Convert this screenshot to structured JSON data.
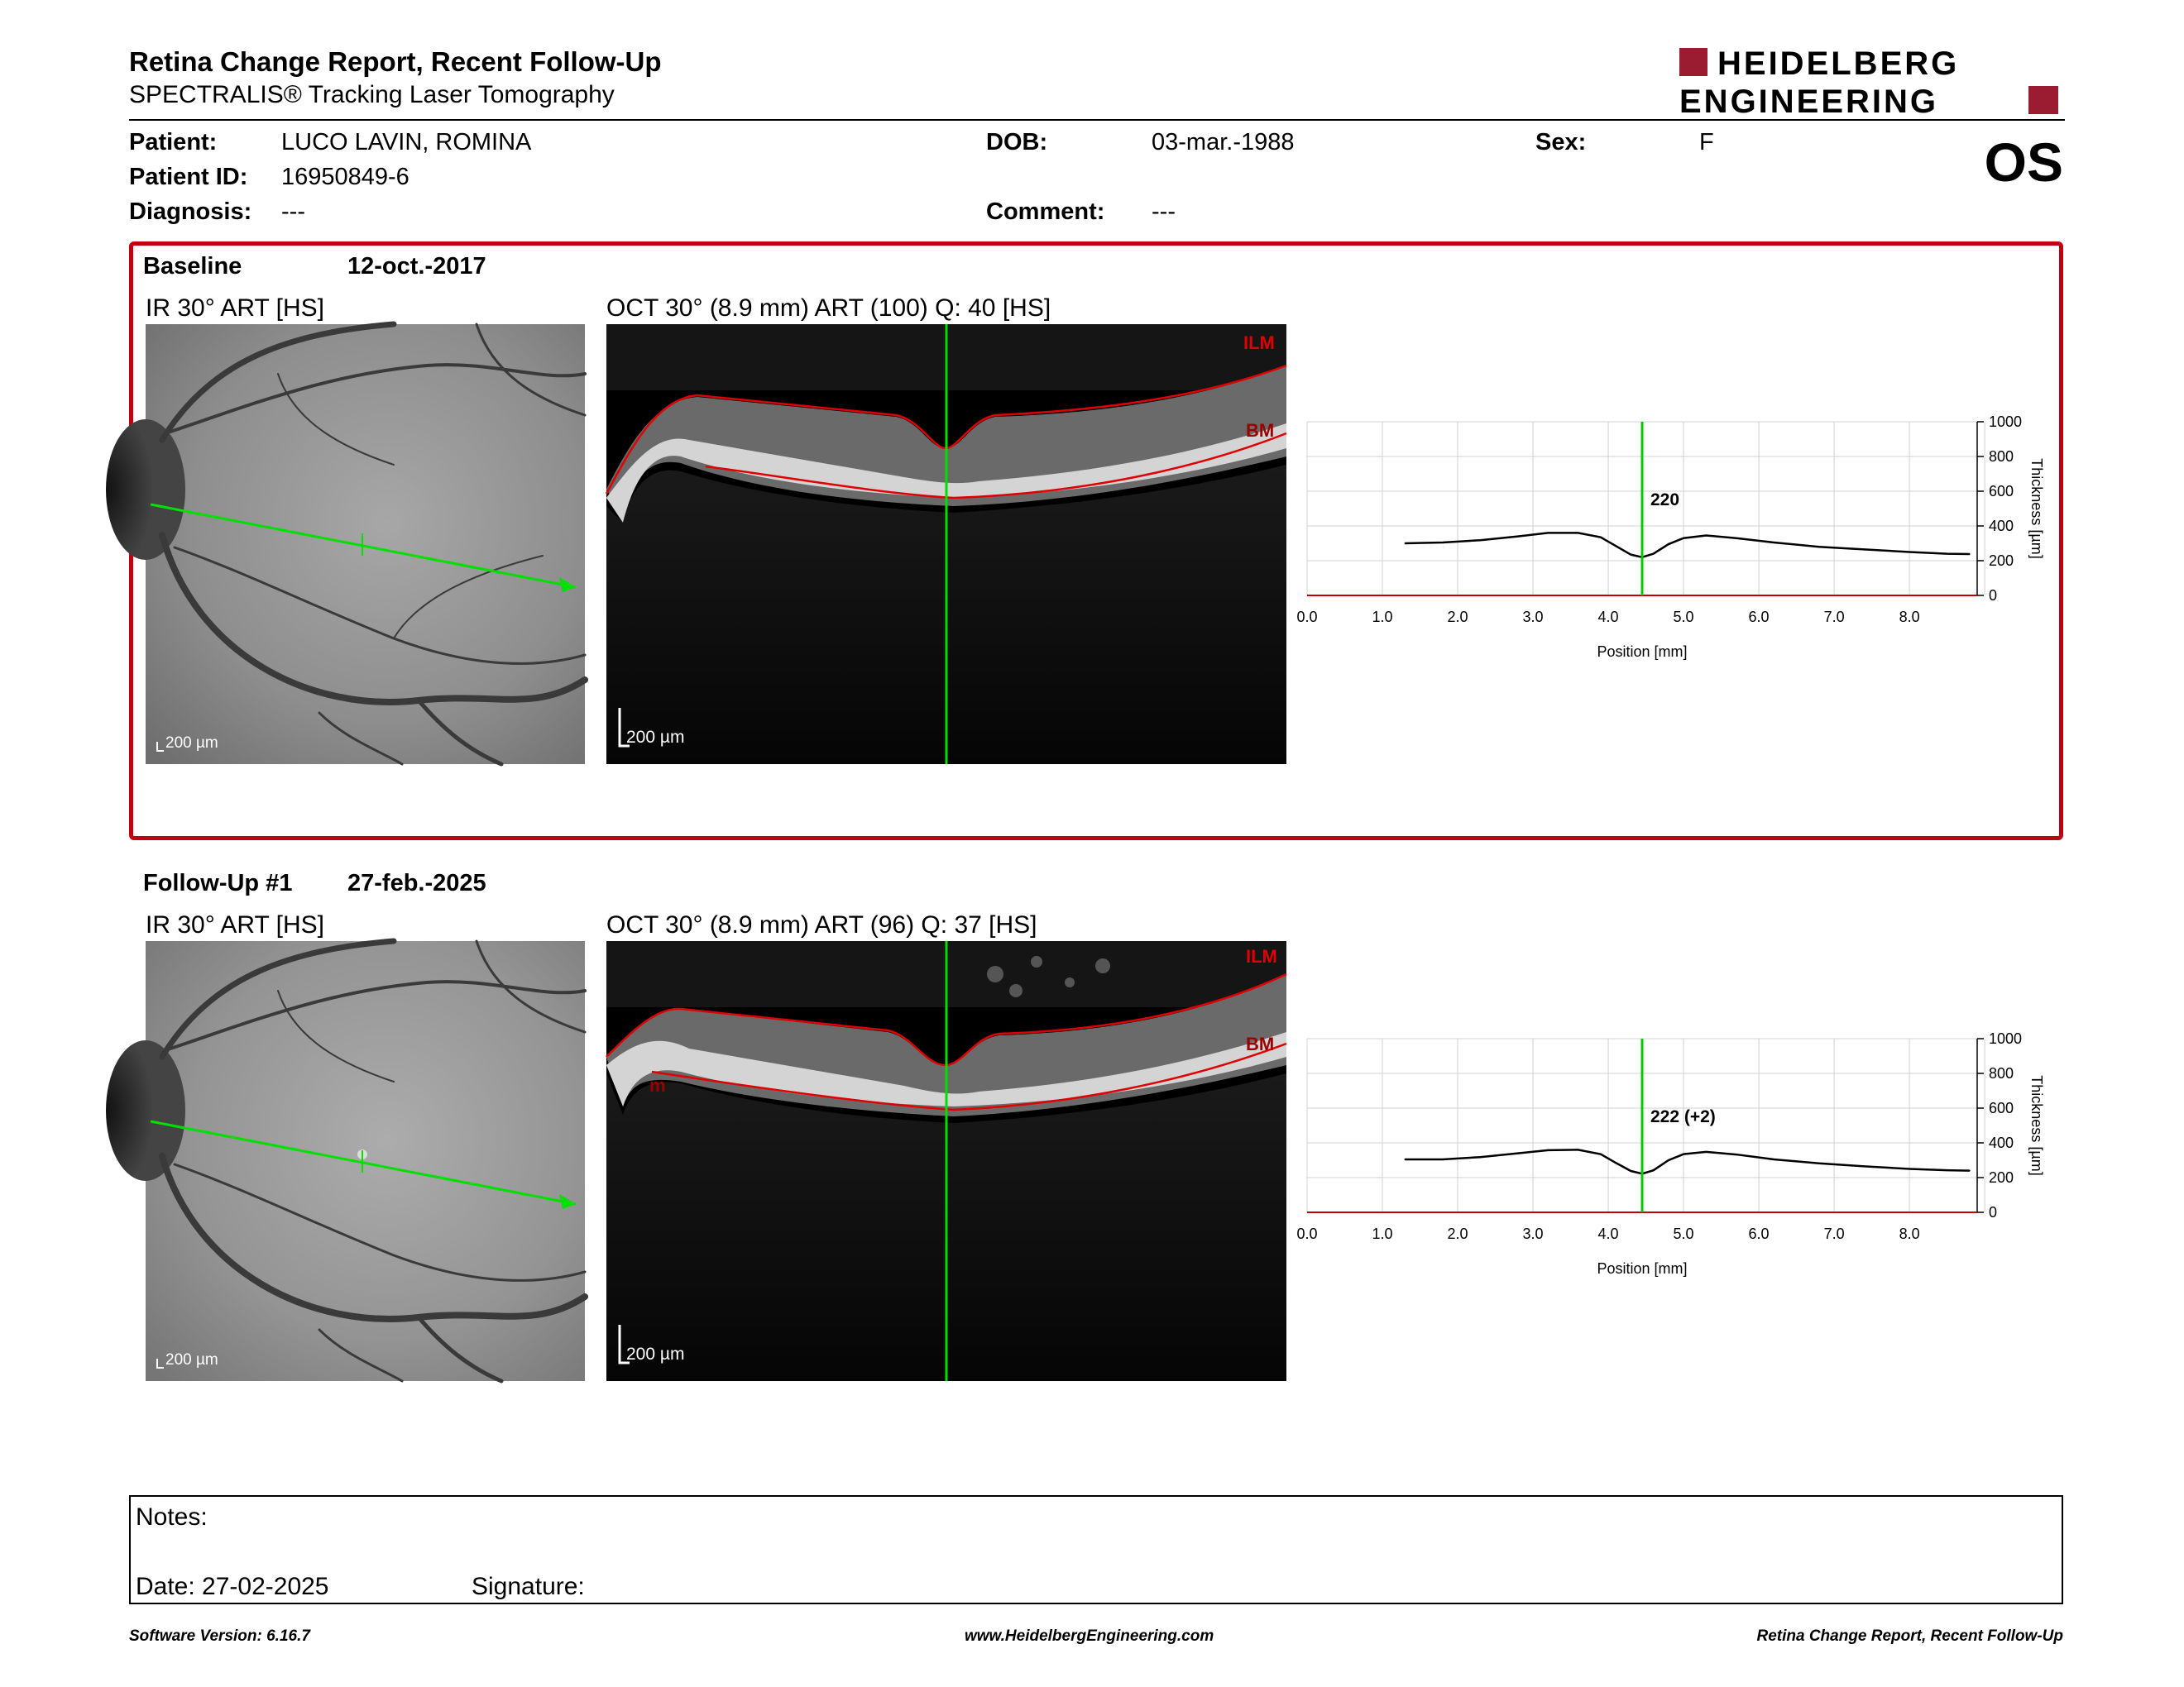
{
  "header": {
    "title": "Retina Change Report, Recent Follow-Up",
    "subtitle": "SPECTRALIS® Tracking Laser Tomography",
    "logo_line1": "HEIDELBERG",
    "logo_line2": "ENGINEERING",
    "brand_color": "#9b1b30"
  },
  "patient": {
    "patient_label": "Patient:",
    "patient_value": "LUCO LAVIN, ROMINA",
    "id_label": "Patient ID:",
    "id_value": "16950849-6",
    "diagnosis_label": "Diagnosis:",
    "diagnosis_value": "---",
    "dob_label": "DOB:",
    "dob_value": "03-mar.-1988",
    "comment_label": "Comment:",
    "comment_value": "---",
    "sex_label": "Sex:",
    "sex_value": "F",
    "eye": "OS"
  },
  "baseline": {
    "title": "Baseline",
    "date": "12-oct.-2017",
    "ir_caption": "IR 30° ART [HS]",
    "oct_caption": "OCT 30° (8.9 mm) ART (100) Q: 40 [HS]",
    "ir_scale": "200 µm",
    "oct_scale": "200 µm",
    "ilm_label": "ILM",
    "bm_label": "BM",
    "thickness_label": "220"
  },
  "followup": {
    "title": "Follow-Up #1",
    "date": "27-feb.-2025",
    "ir_caption": "IR 30° ART [HS]",
    "oct_caption": "OCT 30° (8.9 mm) ART (96) Q: 37 [HS]",
    "ir_scale": "200 µm",
    "oct_scale": "200 µm",
    "ilm_label": "ILM",
    "bm_label": "BM",
    "bm_left_label": "m",
    "thickness_label": "222 (+2)"
  },
  "chart_data": [
    {
      "type": "line",
      "title": "",
      "xlabel": "Position [mm]",
      "ylabel": "Thickness [µm]",
      "xlim": [
        0.0,
        8.9
      ],
      "ylim": [
        0,
        1000
      ],
      "x_ticks": [
        "0.0",
        "1.0",
        "2.0",
        "3.0",
        "4.0",
        "5.0",
        "6.0",
        "7.0",
        "8.0"
      ],
      "y_ticks": [
        "0",
        "200",
        "400",
        "600",
        "800",
        "1000"
      ],
      "grid": true,
      "cursor_x": 4.45,
      "series": [
        {
          "x": [
            1.3,
            1.8,
            2.3,
            2.8,
            3.2,
            3.6,
            3.9,
            4.1,
            4.3,
            4.45,
            4.6,
            4.8,
            5.0,
            5.3,
            5.7,
            6.2,
            6.8,
            7.4,
            8.0,
            8.5,
            8.8
          ],
          "values": [
            300,
            305,
            318,
            340,
            360,
            360,
            335,
            285,
            235,
            220,
            240,
            295,
            330,
            345,
            330,
            305,
            280,
            265,
            250,
            240,
            238
          ]
        }
      ],
      "color": "#000000",
      "cursor_color": "#00cc00",
      "baseline_color": "#c00000"
    },
    {
      "type": "line",
      "title": "",
      "xlabel": "Position [mm]",
      "ylabel": "Thickness [µm]",
      "xlim": [
        0.0,
        8.9
      ],
      "ylim": [
        0,
        1000
      ],
      "x_ticks": [
        "0.0",
        "1.0",
        "2.0",
        "3.0",
        "4.0",
        "5.0",
        "6.0",
        "7.0",
        "8.0"
      ],
      "y_ticks": [
        "0",
        "200",
        "400",
        "600",
        "800",
        "1000"
      ],
      "grid": true,
      "cursor_x": 4.45,
      "series": [
        {
          "x": [
            1.3,
            1.8,
            2.3,
            2.8,
            3.2,
            3.6,
            3.9,
            4.1,
            4.3,
            4.45,
            4.6,
            4.8,
            5.0,
            5.3,
            5.7,
            6.2,
            6.8,
            7.4,
            8.0,
            8.5,
            8.8
          ],
          "values": [
            305,
            305,
            318,
            340,
            358,
            360,
            335,
            285,
            238,
            222,
            242,
            300,
            335,
            348,
            333,
            305,
            282,
            265,
            250,
            242,
            240
          ]
        }
      ],
      "color": "#000000",
      "cursor_color": "#00cc00",
      "baseline_color": "#c00000"
    }
  ],
  "notes": {
    "notes_label": "Notes:",
    "date_label": "Date: 27-02-2025",
    "signature_label": "Signature:"
  },
  "footer": {
    "left": "Software Version: 6.16.7",
    "center": "www.HeidelbergEngineering.com",
    "right": "Retina Change Report, Recent Follow-Up"
  }
}
